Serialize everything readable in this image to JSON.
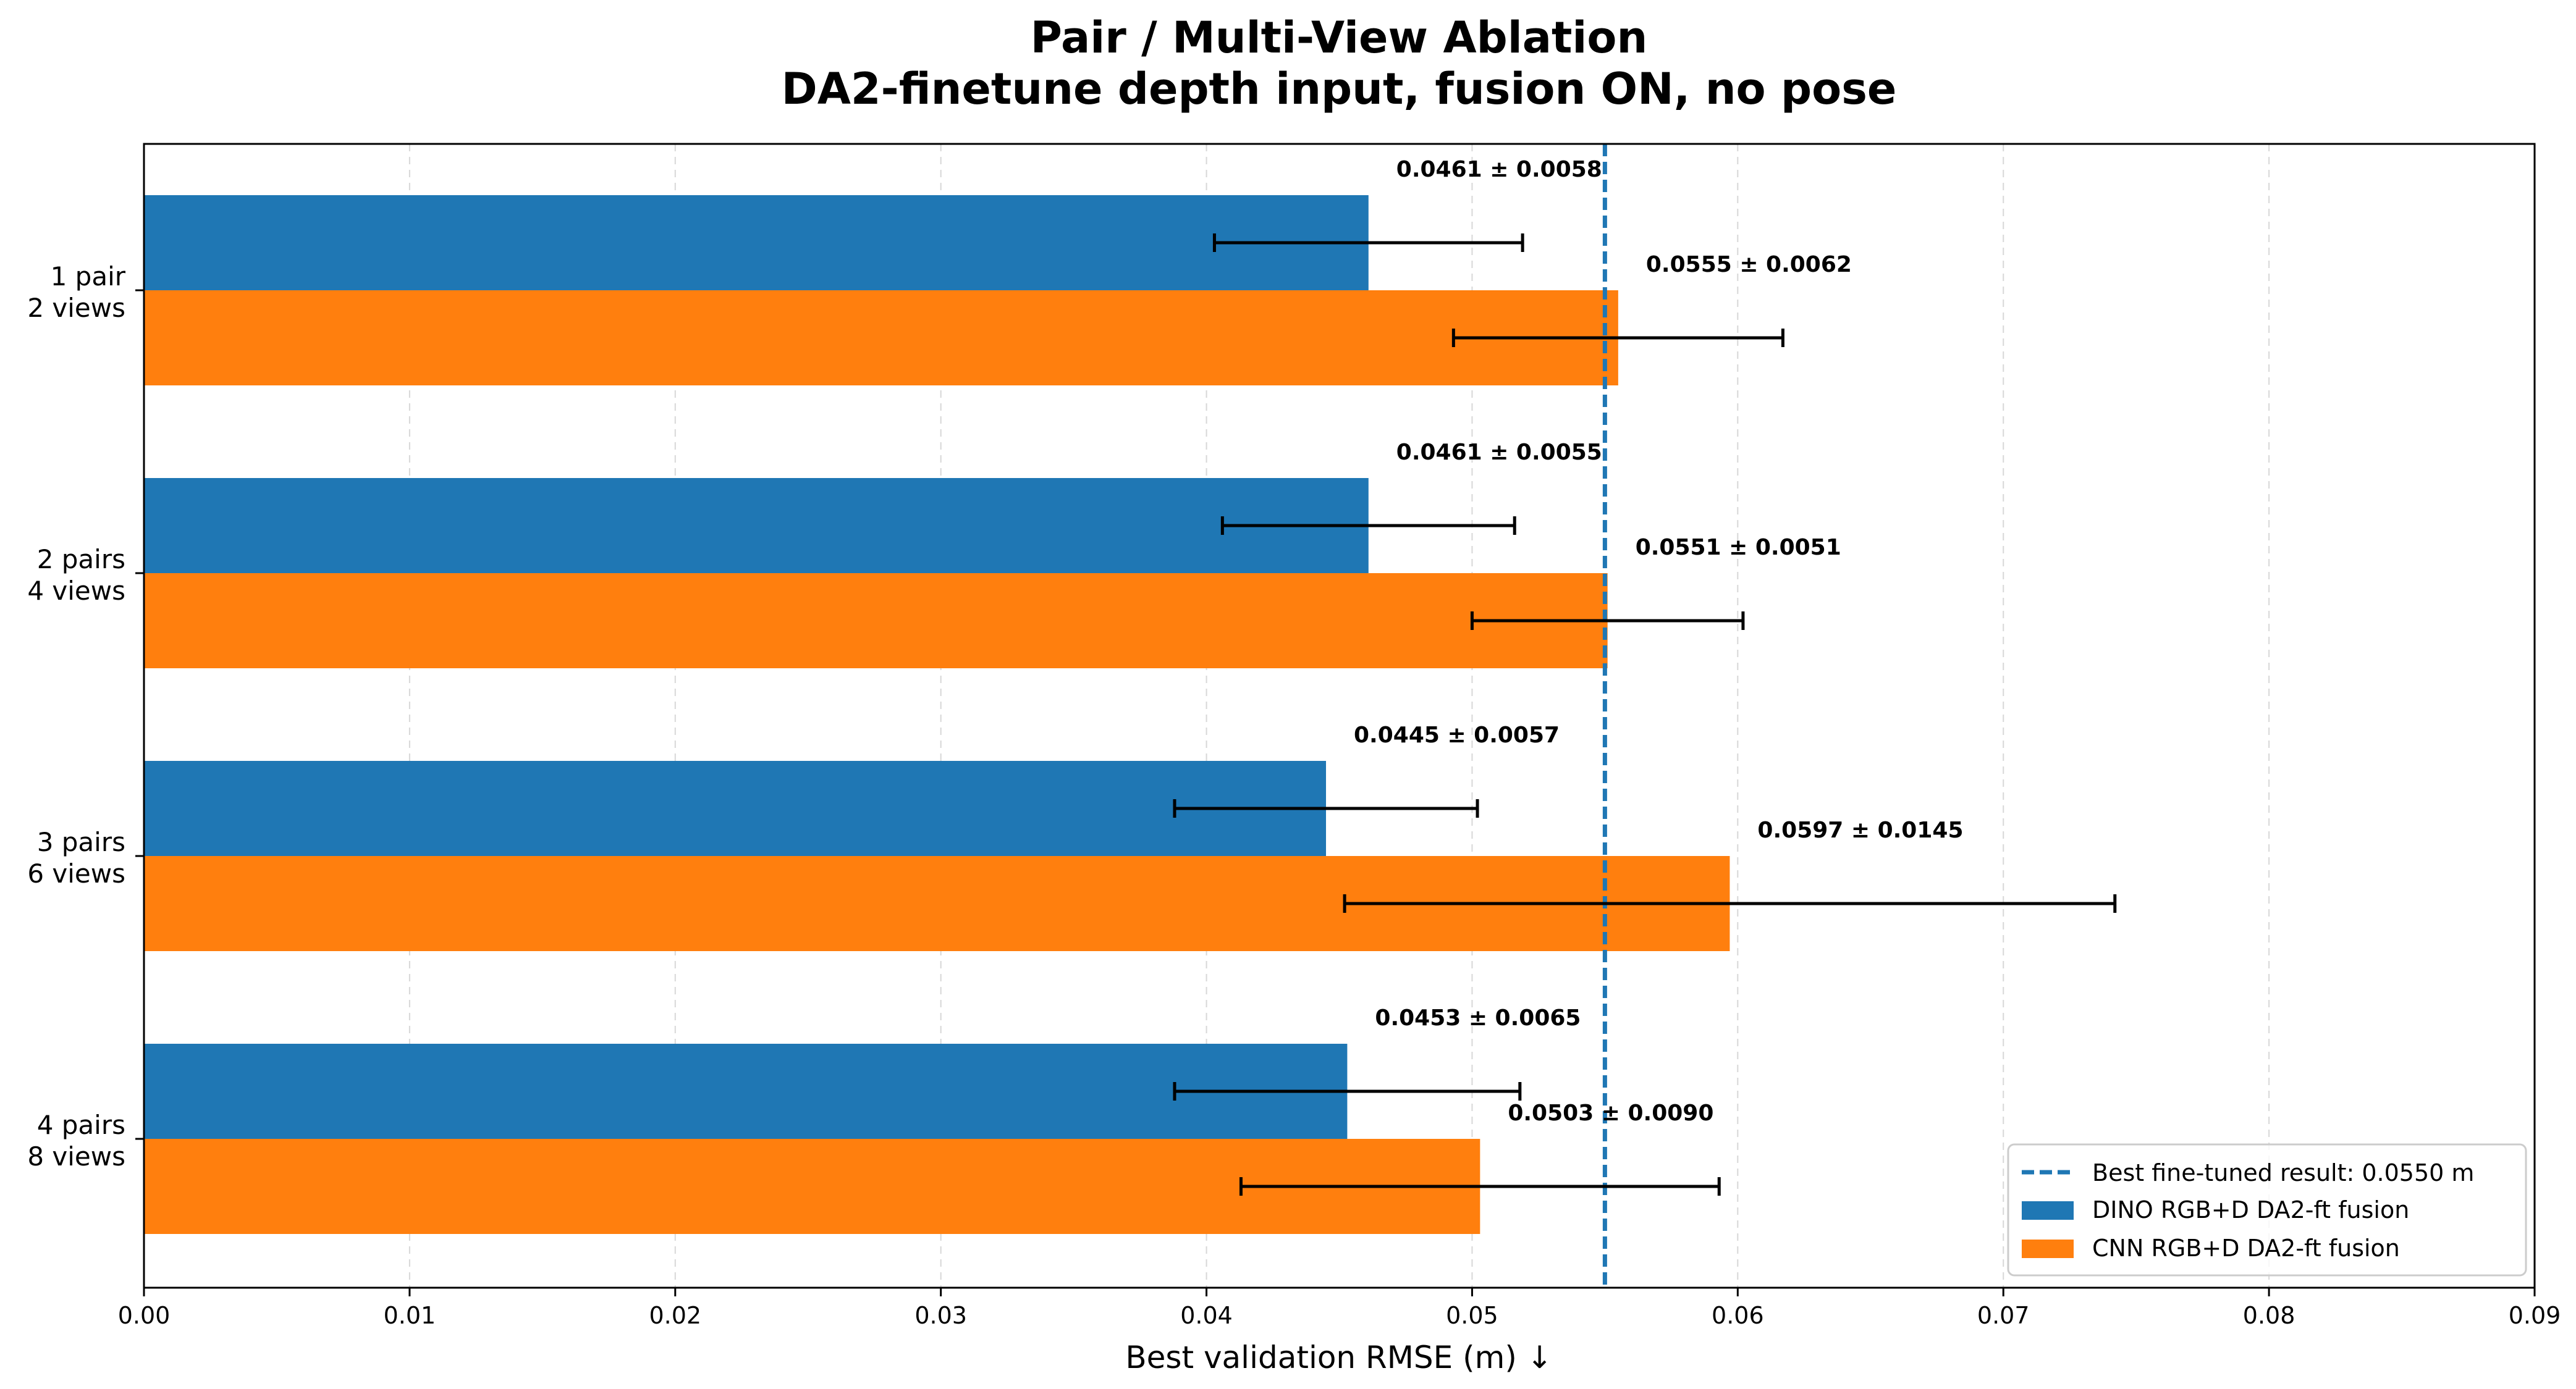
{
  "chart_data": {
    "type": "bar",
    "orientation": "horizontal",
    "title_line1": "Pair / Multi-View Ablation",
    "title_line2": "DA2-finetune depth input, fusion ON, no pose",
    "xlabel": "Best validation RMSE (m) ↓",
    "xlim": [
      0,
      0.09
    ],
    "xticks": [
      0.0,
      0.01,
      0.02,
      0.03,
      0.04,
      0.05,
      0.06,
      0.07,
      0.08,
      0.09
    ],
    "xtick_labels": [
      "0.00",
      "0.01",
      "0.02",
      "0.03",
      "0.04",
      "0.05",
      "0.06",
      "0.07",
      "0.08",
      "0.09"
    ],
    "grid": "x-dashed",
    "categories": [
      {
        "line1": "1 pair",
        "line2": "2 views"
      },
      {
        "line1": "2 pairs",
        "line2": "4 views"
      },
      {
        "line1": "3 pairs",
        "line2": "6 views"
      },
      {
        "line1": "4 pairs",
        "line2": "8 views"
      }
    ],
    "series": [
      {
        "name": "DINO RGB+D DA2-ft fusion",
        "color": "#1f77b4",
        "values": [
          0.0461,
          0.0461,
          0.0445,
          0.0453
        ],
        "errors": [
          0.0058,
          0.0055,
          0.0057,
          0.0065
        ],
        "labels": [
          "0.0461 ± 0.0058",
          "0.0461 ± 0.0055",
          "0.0445 ± 0.0057",
          "0.0453 ± 0.0065"
        ]
      },
      {
        "name": "CNN RGB+D DA2-ft fusion",
        "color": "#ff7f0e",
        "values": [
          0.0555,
          0.0551,
          0.0597,
          0.0503
        ],
        "errors": [
          0.0062,
          0.0051,
          0.0145,
          0.009
        ],
        "labels": [
          "0.0555 ± 0.0062",
          "0.0551 ± 0.0051",
          "0.0597 ± 0.0145",
          "0.0503 ± 0.0090"
        ]
      }
    ],
    "reference_line": {
      "value": 0.055,
      "label": "Best fine-tuned result: 0.0550 m",
      "color": "#1f77b4",
      "style": "dashed"
    },
    "legend_placement": "lower-right"
  }
}
